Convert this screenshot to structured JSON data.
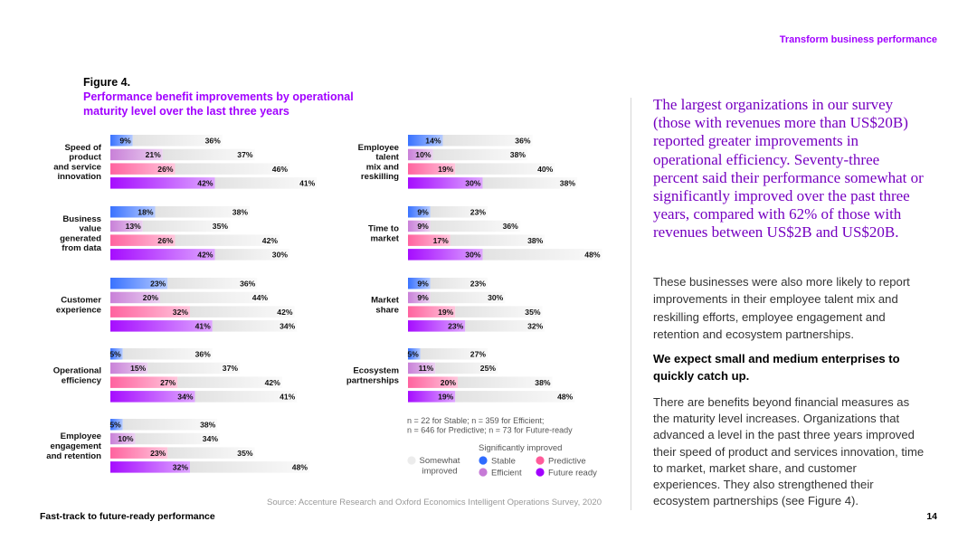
{
  "header": {
    "section_label": "Transform business performance"
  },
  "figure": {
    "label": "Figure 4.",
    "title": "Performance benefit improvements by operational maturity level over the last three years"
  },
  "colors": {
    "stable": "#2f6bff",
    "efficient": "#c67ad6",
    "predictive": "#ff5b9a",
    "future_ready": "#a100ff",
    "somewhat": "#ececec",
    "accent": "#a100ff",
    "lead_text": "#7500c0"
  },
  "chart_data": {
    "type": "bar",
    "orientation": "horizontal",
    "stacked": true,
    "title": "Performance benefit improvements by operational maturity level over the last three years",
    "series_order": [
      "Stable",
      "Efficient",
      "Predictive",
      "Future ready"
    ],
    "panels": [
      {
        "category": "Speed of product and service innovation",
        "lines": [
          "Speed of",
          "product",
          "and service",
          "innovation"
        ],
        "rows": [
          {
            "series": "Stable",
            "significant": 9,
            "somewhat": 36
          },
          {
            "series": "Efficient",
            "significant": 21,
            "somewhat": 37
          },
          {
            "series": "Predictive",
            "significant": 26,
            "somewhat": 46
          },
          {
            "series": "Future ready",
            "significant": 42,
            "somewhat": 41
          }
        ]
      },
      {
        "category": "Business value generated from data",
        "lines": [
          "Business",
          "value",
          "generated",
          "from data"
        ],
        "rows": [
          {
            "series": "Stable",
            "significant": 18,
            "somewhat": 38
          },
          {
            "series": "Efficient",
            "significant": 13,
            "somewhat": 35
          },
          {
            "series": "Predictive",
            "significant": 26,
            "somewhat": 42
          },
          {
            "series": "Future ready",
            "significant": 42,
            "somewhat": 30
          }
        ]
      },
      {
        "category": "Customer experience",
        "lines": [
          "Customer",
          "experience"
        ],
        "rows": [
          {
            "series": "Stable",
            "significant": 23,
            "somewhat": 36
          },
          {
            "series": "Efficient",
            "significant": 20,
            "somewhat": 44
          },
          {
            "series": "Predictive",
            "significant": 32,
            "somewhat": 42
          },
          {
            "series": "Future ready",
            "significant": 41,
            "somewhat": 34
          }
        ]
      },
      {
        "category": "Operational efficiency",
        "lines": [
          "Operational",
          "efficiency"
        ],
        "rows": [
          {
            "series": "Stable",
            "significant": 5,
            "somewhat": 36
          },
          {
            "series": "Efficient",
            "significant": 15,
            "somewhat": 37
          },
          {
            "series": "Predictive",
            "significant": 27,
            "somewhat": 42
          },
          {
            "series": "Future ready",
            "significant": 34,
            "somewhat": 41
          }
        ]
      },
      {
        "category": "Employee engagement and retention",
        "lines": [
          "Employee",
          "engagement",
          "and retention"
        ],
        "rows": [
          {
            "series": "Stable",
            "significant": 5,
            "somewhat": 38
          },
          {
            "series": "Efficient",
            "significant": 10,
            "somewhat": 34
          },
          {
            "series": "Predictive",
            "significant": 23,
            "somewhat": 35
          },
          {
            "series": "Future ready",
            "significant": 32,
            "somewhat": 48
          }
        ]
      },
      {
        "category": "Employee talent mix and reskilling",
        "lines": [
          "Employee",
          "talent",
          "mix and",
          "reskilling"
        ],
        "rows": [
          {
            "series": "Stable",
            "significant": 14,
            "somewhat": 36
          },
          {
            "series": "Efficient",
            "significant": 10,
            "somewhat": 38
          },
          {
            "series": "Predictive",
            "significant": 19,
            "somewhat": 40
          },
          {
            "series": "Future ready",
            "significant": 30,
            "somewhat": 38
          }
        ]
      },
      {
        "category": "Time to market",
        "lines": [
          "Time to",
          "market"
        ],
        "rows": [
          {
            "series": "Stable",
            "significant": 9,
            "somewhat": 23
          },
          {
            "series": "Efficient",
            "significant": 9,
            "somewhat": 36
          },
          {
            "series": "Predictive",
            "significant": 17,
            "somewhat": 38
          },
          {
            "series": "Future ready",
            "significant": 30,
            "somewhat": 48
          }
        ]
      },
      {
        "category": "Market share",
        "lines": [
          "Market",
          "share"
        ],
        "rows": [
          {
            "series": "Stable",
            "significant": 9,
            "somewhat": 23
          },
          {
            "series": "Efficient",
            "significant": 9,
            "somewhat": 30
          },
          {
            "series": "Predictive",
            "significant": 19,
            "somewhat": 35
          },
          {
            "series": "Future ready",
            "significant": 23,
            "somewhat": 32
          }
        ]
      },
      {
        "category": "Ecosystem partnerships",
        "lines": [
          "Ecosystem",
          "partnerships"
        ],
        "rows": [
          {
            "series": "Stable",
            "significant": 5,
            "somewhat": 27
          },
          {
            "series": "Efficient",
            "significant": 11,
            "somewhat": 25
          },
          {
            "series": "Predictive",
            "significant": 20,
            "somewhat": 38
          },
          {
            "series": "Future ready",
            "significant": 19,
            "somewhat": 48
          }
        ]
      }
    ],
    "sample_note": [
      "n = 22 for Stable; n = 359 for Efficient;",
      "n = 646 for Predictive; n = 73 for Future-ready"
    ],
    "legend": {
      "heading": "Significantly improved",
      "somewhat_lines": [
        "Somewhat",
        "improved"
      ],
      "items": [
        "Stable",
        "Predictive",
        "Efficient",
        "Future ready"
      ]
    },
    "source": "Source: Accenture Research and Oxford Economics Intelligent Operations Survey, 2020"
  },
  "body": {
    "lead": "The largest organizations in our survey (those with revenues more than US$20B) reported greater improvements in operational efficiency. Seventy-three percent said their performance somewhat or significantly improved over the past three years, compared with 62% of those with revenues between US$2B and US$20B.",
    "para1": "These businesses were also more likely to report improvements in their employee talent mix and reskilling efforts, employee engagement and retention and ecosystem partnerships.",
    "subhead": "We expect small and medium enterprises to quickly catch up.",
    "para2": "There are benefits beyond financial measures as the maturity level increases. Organizations that advanced a level in the past three years improved their speed of product and services innovation, time to market, market share, and customer experiences. They also strengthened their ecosystem partnerships (see Figure 4)."
  },
  "footer": {
    "title": "Fast-track to future-ready performance",
    "page": "14"
  }
}
